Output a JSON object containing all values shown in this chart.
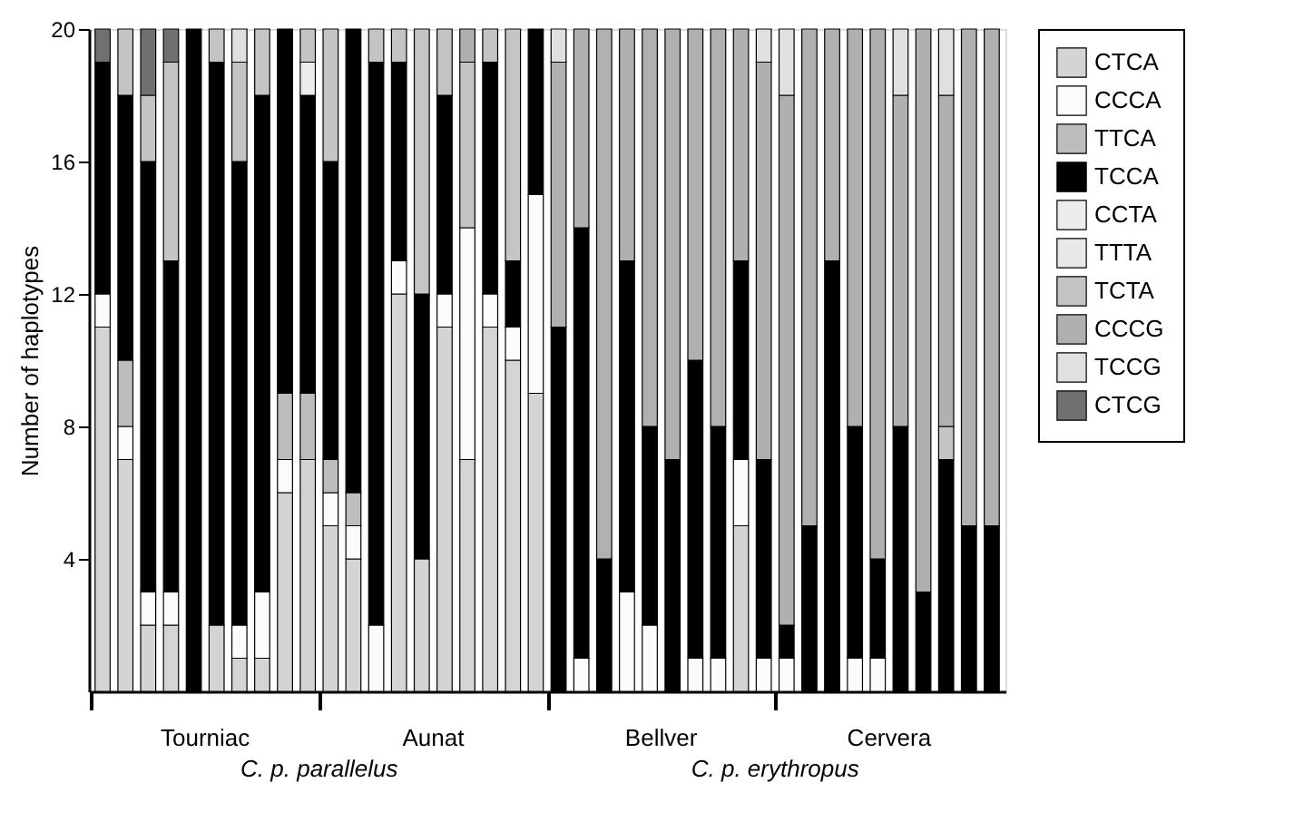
{
  "chart_data": {
    "type": "bar",
    "stacked": true,
    "ylabel": "Number of haplotypes",
    "categories": [
      null,
      null,
      null,
      null,
      null,
      null,
      null,
      null,
      null,
      null,
      null,
      null,
      null,
      null,
      null,
      null,
      null,
      null,
      null,
      null,
      null,
      null,
      null,
      null,
      null,
      null,
      null,
      null,
      null,
      null,
      null,
      null,
      null,
      null,
      null,
      null,
      null,
      null,
      null,
      null
    ],
    "series": [
      {
        "name": "CTCA",
        "color": "#d4d4d4",
        "values": [
          11,
          7,
          2,
          2,
          0,
          2,
          1,
          1,
          6,
          7,
          5,
          4,
          0,
          12,
          4,
          11,
          7,
          11,
          10,
          9,
          0,
          0,
          0,
          0,
          0,
          0,
          0,
          0,
          5,
          0,
          0,
          0,
          0,
          0,
          0,
          0,
          0,
          0,
          0,
          0
        ]
      },
      {
        "name": "CCCA",
        "color": "#fbfbfb",
        "values": [
          1,
          1,
          1,
          1,
          0,
          0,
          1,
          2,
          1,
          0,
          1,
          1,
          2,
          1,
          0,
          1,
          7,
          1,
          1,
          6,
          0,
          1,
          0,
          3,
          2,
          0,
          1,
          1,
          2,
          1,
          1,
          0,
          0,
          1,
          1,
          0,
          0,
          0,
          0,
          0
        ]
      },
      {
        "name": "TTCA",
        "color": "#bdbdbd",
        "values": [
          0,
          2,
          0,
          0,
          0,
          0,
          0,
          0,
          2,
          2,
          1,
          1,
          0,
          0,
          0,
          0,
          0,
          0,
          0,
          0,
          0,
          0,
          0,
          0,
          0,
          0,
          0,
          0,
          0,
          0,
          0,
          0,
          0,
          0,
          0,
          0,
          0,
          0,
          0,
          0
        ]
      },
      {
        "name": "TCCA",
        "color": "#000000",
        "values": [
          7,
          8,
          13,
          10,
          20,
          17,
          14,
          15,
          11,
          9,
          9,
          14,
          17,
          6,
          8,
          6,
          0,
          7,
          2,
          5,
          11,
          13,
          4,
          10,
          6,
          7,
          9,
          7,
          6,
          6,
          1,
          5,
          13,
          7,
          3,
          8,
          3,
          7,
          5,
          5
        ]
      },
      {
        "name": "CCTA",
        "color": "#ececec",
        "values": [
          0,
          0,
          0,
          0,
          0,
          0,
          0,
          0,
          0,
          1,
          0,
          0,
          0,
          0,
          0,
          0,
          0,
          0,
          0,
          0,
          0,
          0,
          0,
          0,
          0,
          0,
          0,
          0,
          0,
          0,
          0,
          0,
          0,
          0,
          0,
          0,
          0,
          0,
          0,
          0
        ]
      },
      {
        "name": "TTTA",
        "color": "#e8e8e8",
        "values": [
          0,
          0,
          0,
          0,
          0,
          0,
          0,
          0,
          0,
          0,
          0,
          0,
          0,
          0,
          0,
          0,
          0,
          0,
          0,
          0,
          0,
          0,
          0,
          0,
          0,
          0,
          0,
          0,
          0,
          0,
          0,
          0,
          0,
          0,
          0,
          0,
          0,
          0,
          0,
          0
        ]
      },
      {
        "name": "TCTA",
        "color": "#c4c4c4",
        "values": [
          0,
          2,
          2,
          6,
          0,
          1,
          3,
          2,
          0,
          1,
          4,
          0,
          1,
          1,
          8,
          2,
          5,
          1,
          7,
          0,
          0,
          0,
          0,
          0,
          0,
          0,
          0,
          0,
          0,
          0,
          0,
          0,
          0,
          0,
          0,
          0,
          0,
          1,
          0,
          0
        ]
      },
      {
        "name": "CCCG",
        "color": "#b0b0b0",
        "values": [
          0,
          0,
          0,
          0,
          0,
          0,
          0,
          0,
          0,
          0,
          0,
          0,
          0,
          0,
          0,
          0,
          1,
          0,
          0,
          0,
          8,
          6,
          16,
          7,
          12,
          13,
          10,
          12,
          7,
          12,
          16,
          15,
          7,
          12,
          16,
          10,
          17,
          10,
          15,
          15
        ]
      },
      {
        "name": "TCCG",
        "color": "#e0e0e0",
        "values": [
          0,
          0,
          0,
          0,
          0,
          0,
          1,
          0,
          0,
          0,
          0,
          0,
          0,
          0,
          0,
          0,
          0,
          0,
          0,
          0,
          1,
          0,
          0,
          0,
          0,
          0,
          0,
          0,
          0,
          1,
          2,
          0,
          0,
          0,
          0,
          2,
          0,
          2,
          0,
          0
        ]
      },
      {
        "name": "CTCG",
        "color": "#707070",
        "values": [
          1,
          0,
          2,
          1,
          0,
          0,
          0,
          0,
          0,
          0,
          0,
          0,
          0,
          0,
          0,
          0,
          0,
          0,
          0,
          0,
          0,
          0,
          0,
          0,
          0,
          0,
          0,
          0,
          0,
          0,
          0,
          0,
          0,
          0,
          0,
          0,
          0,
          0,
          0,
          0
        ]
      }
    ],
    "ylim": [
      0,
      20
    ],
    "yticks": [
      4,
      8,
      12,
      16,
      20
    ],
    "grid": false,
    "legend": "top right",
    "annotations": [
      "Tourniac",
      "Aunat",
      "Bellver",
      "Cervera",
      "C. p. parallelus",
      "C. p. erythropus"
    ]
  }
}
